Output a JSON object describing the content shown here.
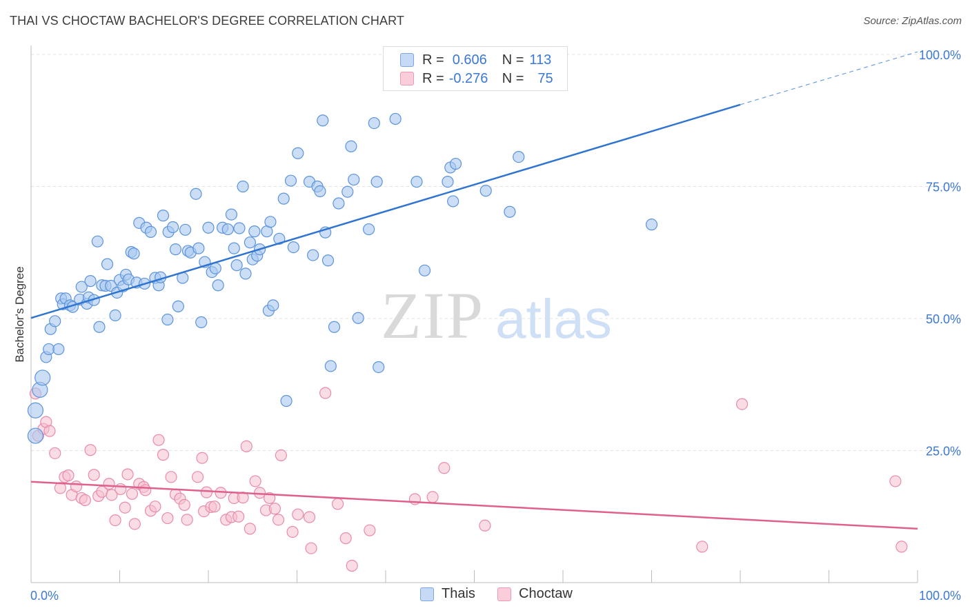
{
  "title": "THAI VS CHOCTAW BACHELOR'S DEGREE CORRELATION CHART",
  "source": "Source: ZipAtlas.com",
  "watermark": {
    "zip": "ZIP",
    "atlas": "atlas"
  },
  "legend": {
    "rows": [
      {
        "r_label": "R =",
        "r_value": "0.606",
        "n_label": "N =",
        "n_value": "113"
      },
      {
        "r_label": "R =",
        "r_value": "-0.276",
        "n_label": "N =",
        "n_value": "75"
      }
    ]
  },
  "bottom_legend": {
    "thais": "Thais",
    "choctaw": "Choctaw"
  },
  "colors": {
    "thais_fill": "#a9c8f0",
    "thais_stroke": "#5b93dd",
    "thais_line": "#2f74d0",
    "choctaw_fill": "#f6bfd0",
    "choctaw_stroke": "#e98aaa",
    "choctaw_line": "#e0608d",
    "axis_text": "#3a78d4",
    "grid": "#e3e3e3"
  },
  "chart_data": {
    "type": "scatter",
    "title": "THAI VS CHOCTAW BACHELOR'S DEGREE CORRELATION CHART",
    "xlabel": "",
    "ylabel": "Bachelor's Degree",
    "xlim": [
      0,
      100
    ],
    "ylim": [
      0,
      100
    ],
    "x_tick_labels": [
      "0.0%",
      "100.0%"
    ],
    "y_tick_labels": [
      "25.0%",
      "50.0%",
      "75.0%",
      "100.0%"
    ],
    "y_ticks": [
      25,
      50,
      75,
      100
    ],
    "grid": true,
    "legend_position": "top-center",
    "series": [
      {
        "name": "Thais",
        "r": 0.606,
        "n": 113,
        "trend": {
          "x": [
            0,
            80
          ],
          "y": [
            50.1,
            90.5
          ],
          "dashed_to": [
            100,
            100.5
          ]
        },
        "points": [
          [
            0.5,
            27.8
          ],
          [
            0.5,
            32.6
          ],
          [
            1,
            36.5
          ],
          [
            1.3,
            38.8
          ],
          [
            1.7,
            42.7
          ],
          [
            2,
            44.2
          ],
          [
            2.2,
            48
          ],
          [
            2.7,
            49.5
          ],
          [
            3.1,
            44.2
          ],
          [
            3.4,
            53.8
          ],
          [
            3.6,
            52.7
          ],
          [
            3.9,
            53.8
          ],
          [
            4.4,
            52.5
          ],
          [
            4.7,
            52.2
          ],
          [
            5.5,
            53.6
          ],
          [
            5.7,
            56
          ],
          [
            6.3,
            52.8
          ],
          [
            6.5,
            54
          ],
          [
            6.7,
            57.1
          ],
          [
            7.1,
            53.5
          ],
          [
            7.5,
            64.6
          ],
          [
            7.7,
            48.4
          ],
          [
            8,
            56.3
          ],
          [
            8.4,
            56.2
          ],
          [
            8.6,
            60.3
          ],
          [
            9,
            56.2
          ],
          [
            9.5,
            50.6
          ],
          [
            9.7,
            54.9
          ],
          [
            10,
            57.3
          ],
          [
            10.4,
            56.1
          ],
          [
            10.7,
            58.3
          ],
          [
            11,
            57.4
          ],
          [
            11.3,
            62.6
          ],
          [
            11.6,
            62.3
          ],
          [
            11.9,
            56.8
          ],
          [
            12.2,
            68.1
          ],
          [
            12.8,
            56.6
          ],
          [
            13,
            67.2
          ],
          [
            13.5,
            66.4
          ],
          [
            14,
            57.7
          ],
          [
            14.4,
            56.3
          ],
          [
            14.9,
            69.5
          ],
          [
            14.6,
            57.8
          ],
          [
            15.4,
            49.8
          ],
          [
            15.5,
            66.4
          ],
          [
            16,
            67.3
          ],
          [
            16.3,
            63.1
          ],
          [
            16.6,
            52.3
          ],
          [
            17.1,
            57.7
          ],
          [
            17.4,
            66.8
          ],
          [
            17.7,
            62.8
          ],
          [
            18,
            62.5
          ],
          [
            18.6,
            73.6
          ],
          [
            18.9,
            63.3
          ],
          [
            19.2,
            49.3
          ],
          [
            19.6,
            60.7
          ],
          [
            20,
            67.2
          ],
          [
            20.4,
            58.8
          ],
          [
            20.8,
            59.5
          ],
          [
            21.1,
            56.3
          ],
          [
            21.6,
            67.2
          ],
          [
            22.2,
            66.9
          ],
          [
            22.6,
            69.7
          ],
          [
            22.9,
            63.3
          ],
          [
            23.2,
            60.1
          ],
          [
            23.5,
            67.1
          ],
          [
            23.9,
            75
          ],
          [
            24.2,
            58.5
          ],
          [
            24.7,
            64.4
          ],
          [
            25,
            61.2
          ],
          [
            25.2,
            66.5
          ],
          [
            25.5,
            61.9
          ],
          [
            25.8,
            63.1
          ],
          [
            26.6,
            66.5
          ],
          [
            26.8,
            51.5
          ],
          [
            27,
            68.3
          ],
          [
            27.3,
            52.5
          ],
          [
            28,
            65.1
          ],
          [
            28.5,
            72.7
          ],
          [
            28.8,
            34.4
          ],
          [
            29.3,
            76.1
          ],
          [
            29.6,
            63.5
          ],
          [
            30.1,
            81.3
          ],
          [
            31.4,
            75.9
          ],
          [
            31.8,
            62
          ],
          [
            32.3,
            75
          ],
          [
            32.6,
            74.1
          ],
          [
            32.9,
            87.5
          ],
          [
            33.2,
            66.3
          ],
          [
            33.5,
            61
          ],
          [
            33.8,
            41
          ],
          [
            34.2,
            48.4
          ],
          [
            34.7,
            71.8
          ],
          [
            35.7,
            74
          ],
          [
            36.1,
            82.6
          ],
          [
            36.4,
            76.3
          ],
          [
            36.9,
            50.1
          ],
          [
            38.1,
            66.9
          ],
          [
            38.7,
            87
          ],
          [
            39,
            75.9
          ],
          [
            39.2,
            40.8
          ],
          [
            41.1,
            87.8
          ],
          [
            43.5,
            75.9
          ],
          [
            44.4,
            59.1
          ],
          [
            47,
            75.9
          ],
          [
            47.3,
            78.6
          ],
          [
            47.6,
            72.2
          ],
          [
            47.9,
            79.3
          ],
          [
            51.3,
            74.2
          ],
          [
            54,
            70.2
          ],
          [
            55,
            80.6
          ],
          [
            70,
            67.8
          ]
        ]
      },
      {
        "name": "Choctaw",
        "r": -0.276,
        "n": 75,
        "trend": {
          "x": [
            0,
            100
          ],
          "y": [
            19.1,
            10.2
          ]
        },
        "points": [
          [
            0.5,
            35.8
          ],
          [
            0.8,
            27.8
          ],
          [
            1.4,
            29.1
          ],
          [
            1.7,
            30.4
          ],
          [
            2.1,
            28.7
          ],
          [
            2.7,
            24.5
          ],
          [
            3.3,
            17.9
          ],
          [
            3.8,
            20
          ],
          [
            4.2,
            20.3
          ],
          [
            4.6,
            16.6
          ],
          [
            5.1,
            18.2
          ],
          [
            5.7,
            16
          ],
          [
            6.1,
            15.6
          ],
          [
            6.7,
            25.1
          ],
          [
            7.1,
            20.4
          ],
          [
            7.6,
            16.4
          ],
          [
            8,
            17.2
          ],
          [
            8.8,
            18.7
          ],
          [
            9.1,
            16.6
          ],
          [
            9.5,
            11.8
          ],
          [
            10.1,
            17.7
          ],
          [
            10.6,
            14.2
          ],
          [
            10.9,
            20.5
          ],
          [
            11.4,
            16.8
          ],
          [
            11.7,
            11.1
          ],
          [
            12.2,
            18.7
          ],
          [
            12.7,
            18.1
          ],
          [
            12.9,
            17.5
          ],
          [
            13.5,
            13.6
          ],
          [
            14,
            14.4
          ],
          [
            14.4,
            27
          ],
          [
            14.9,
            24.2
          ],
          [
            15.4,
            12.2
          ],
          [
            15.8,
            20
          ],
          [
            16.3,
            16.7
          ],
          [
            16.8,
            15.9
          ],
          [
            17.3,
            14.7
          ],
          [
            17.6,
            11.9
          ],
          [
            18.8,
            20
          ],
          [
            19.3,
            23.6
          ],
          [
            19.5,
            13.5
          ],
          [
            19.8,
            17.1
          ],
          [
            20.3,
            14.3
          ],
          [
            20.7,
            14.4
          ],
          [
            21.4,
            17
          ],
          [
            22,
            11.9
          ],
          [
            22.6,
            12.4
          ],
          [
            22.9,
            16
          ],
          [
            23.4,
            12.5
          ],
          [
            23.9,
            16.1
          ],
          [
            24.3,
            25.8
          ],
          [
            24.7,
            10.2
          ],
          [
            25.3,
            19.2
          ],
          [
            25.8,
            17
          ],
          [
            26.5,
            13.7
          ],
          [
            26.9,
            16
          ],
          [
            27.5,
            14
          ],
          [
            27.9,
            11.9
          ],
          [
            28.2,
            24.1
          ],
          [
            29.5,
            9.6
          ],
          [
            30.1,
            12.9
          ],
          [
            31.4,
            12.4
          ],
          [
            31.6,
            6.5
          ],
          [
            33.2,
            35.9
          ],
          [
            34.6,
            14.9
          ],
          [
            35.5,
            8.4
          ],
          [
            36.2,
            3.2
          ],
          [
            38.2,
            9.9
          ],
          [
            43.3,
            15.8
          ],
          [
            45.3,
            16.2
          ],
          [
            46.6,
            21.7
          ],
          [
            51.2,
            10.8
          ],
          [
            75.7,
            6.8
          ],
          [
            80.2,
            33.8
          ],
          [
            97.5,
            19.2
          ],
          [
            98.2,
            6.8
          ]
        ]
      }
    ]
  }
}
